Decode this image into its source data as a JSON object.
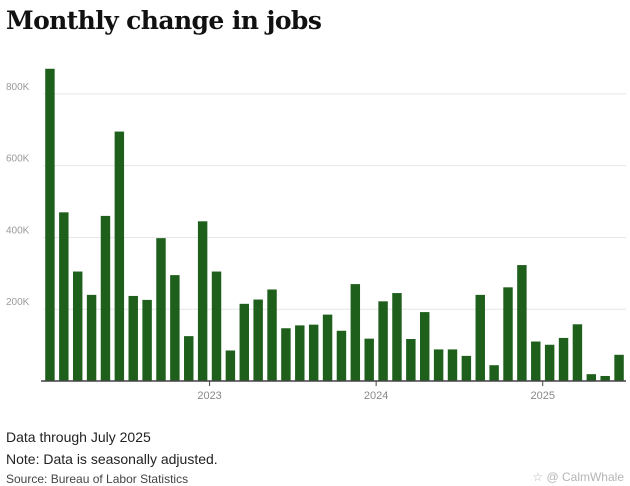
{
  "chart_data": {
    "type": "bar",
    "title": "Monthly change in jobs",
    "xlabel": "",
    "ylabel": "",
    "ylim": [
      0,
      900000
    ],
    "yticks": [
      200000,
      400000,
      600000,
      800000
    ],
    "ytick_labels": [
      "200K",
      "400K",
      "600K",
      "800K"
    ],
    "x_year_labels": [
      {
        "label": "2023",
        "index": 11.5
      },
      {
        "label": "2024",
        "index": 23.5
      },
      {
        "label": "2025",
        "index": 35.5
      }
    ],
    "bar_color": "#1e5f1c",
    "series": [
      {
        "name": "Monthly change in jobs",
        "values": [
          870000,
          470000,
          305000,
          240000,
          460000,
          695000,
          237000,
          226000,
          398000,
          295000,
          125000,
          445000,
          305000,
          85000,
          215000,
          227000,
          255000,
          147000,
          155000,
          157000,
          185000,
          140000,
          270000,
          118000,
          222000,
          245000,
          117000,
          192000,
          88000,
          88000,
          70000,
          240000,
          44000,
          261000,
          323000,
          110000,
          101000,
          120000,
          158000,
          19000,
          14000,
          73000
        ]
      }
    ]
  },
  "footer": {
    "data_through": "Data through July 2025",
    "note": "Note: Data is seasonally adjusted.",
    "source": "Source: Bureau of Labor Statistics",
    "watermark": "☆ @ CalmWhale"
  }
}
